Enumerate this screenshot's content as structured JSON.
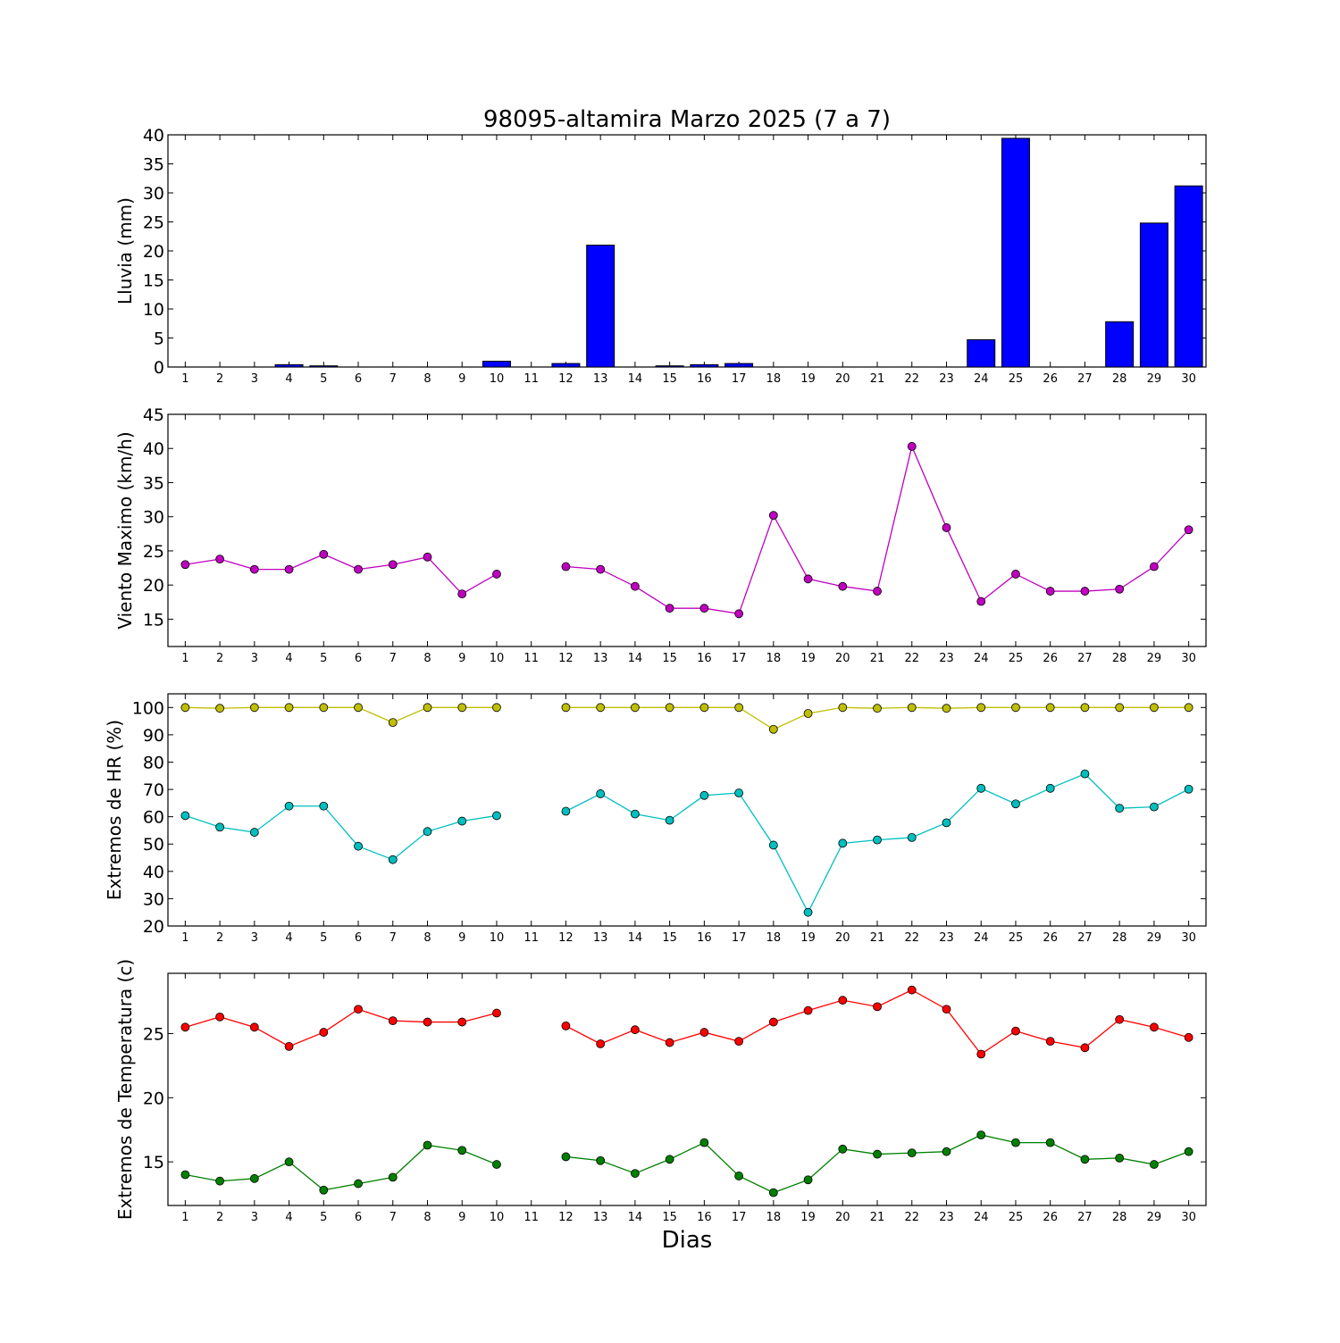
{
  "title": "98095-altamira Marzo 2025  (7 a 7)",
  "xlabel": "Dias",
  "colors": {
    "rain_bar": "#0000ff",
    "wind": "#bf00bf",
    "hr_max": "#bfbf00",
    "hr_min": "#00bfbf",
    "temp_max": "#ff0000",
    "temp_min": "#008000"
  },
  "chart_data": [
    {
      "type": "bar",
      "ylabel": "Lluvia (mm)",
      "ylim": [
        0,
        40
      ],
      "yticks": [
        0,
        5,
        10,
        15,
        20,
        25,
        30,
        35,
        40
      ],
      "categories": [
        1,
        2,
        3,
        4,
        5,
        6,
        7,
        8,
        9,
        10,
        11,
        12,
        13,
        14,
        15,
        16,
        17,
        18,
        19,
        20,
        21,
        22,
        23,
        24,
        25,
        26,
        27,
        28,
        29,
        30
      ],
      "series": [
        {
          "values": [
            0,
            0,
            0,
            0.4,
            0.2,
            0,
            0,
            0,
            0,
            1.0,
            null,
            0.6,
            21.0,
            0,
            0.2,
            0.4,
            0.6,
            0,
            0,
            0,
            0,
            0,
            0,
            4.7,
            39.4,
            0,
            0,
            7.8,
            24.8,
            31.2
          ]
        }
      ]
    },
    {
      "type": "line",
      "ylabel": "Viento Maximo (km/h)",
      "ylim": [
        11,
        45
      ],
      "yticks": [
        15,
        20,
        25,
        30,
        35,
        40,
        45
      ],
      "categories": [
        1,
        2,
        3,
        4,
        5,
        6,
        7,
        8,
        9,
        10,
        11,
        12,
        13,
        14,
        15,
        16,
        17,
        18,
        19,
        20,
        21,
        22,
        23,
        24,
        25,
        26,
        27,
        28,
        29,
        30
      ],
      "series": [
        {
          "values": [
            23.0,
            23.8,
            22.3,
            22.3,
            24.5,
            22.3,
            23.0,
            24.1,
            18.7,
            21.6,
            null,
            22.7,
            22.3,
            19.8,
            16.6,
            16.6,
            15.8,
            30.2,
            20.9,
            19.8,
            19.1,
            40.3,
            28.4,
            17.6,
            21.6,
            19.1,
            19.1,
            19.4,
            22.7,
            28.1
          ]
        }
      ]
    },
    {
      "type": "line",
      "ylabel": "Extremos de HR (%)",
      "ylim": [
        20,
        105
      ],
      "yticks": [
        20,
        30,
        40,
        50,
        60,
        70,
        80,
        90,
        100
      ],
      "categories": [
        1,
        2,
        3,
        4,
        5,
        6,
        7,
        8,
        9,
        10,
        11,
        12,
        13,
        14,
        15,
        16,
        17,
        18,
        19,
        20,
        21,
        22,
        23,
        24,
        25,
        26,
        27,
        28,
        29,
        30
      ],
      "series": [
        {
          "values": [
            100,
            99.7,
            100,
            100,
            100,
            100,
            94.5,
            100,
            100,
            100,
            null,
            100,
            100,
            100,
            100,
            100,
            100,
            92,
            97.8,
            100,
            99.7,
            100,
            99.7,
            100,
            100,
            100,
            100,
            100,
            100,
            100
          ]
        },
        {
          "values": [
            60.4,
            56.2,
            54.3,
            63.9,
            63.9,
            49.2,
            44.3,
            54.6,
            58.4,
            60.4,
            null,
            62,
            68.4,
            61,
            58.7,
            67.8,
            68.7,
            49.6,
            25,
            50.3,
            51.5,
            52.4,
            57.8,
            70.4,
            64.7,
            70.4,
            75.7,
            63.1,
            63.6,
            70.1
          ]
        }
      ]
    },
    {
      "type": "line",
      "ylabel": "Extremos de Temperatura (c)",
      "ylim": [
        11.6,
        29.7
      ],
      "yticks": [
        15,
        20,
        25
      ],
      "categories": [
        1,
        2,
        3,
        4,
        5,
        6,
        7,
        8,
        9,
        10,
        11,
        12,
        13,
        14,
        15,
        16,
        17,
        18,
        19,
        20,
        21,
        22,
        23,
        24,
        25,
        26,
        27,
        28,
        29,
        30
      ],
      "series": [
        {
          "values": [
            25.5,
            26.3,
            25.5,
            24.0,
            25.1,
            26.9,
            26.0,
            25.9,
            25.9,
            26.6,
            null,
            25.6,
            24.2,
            25.3,
            24.3,
            25.1,
            24.4,
            25.9,
            26.8,
            27.6,
            27.1,
            28.4,
            26.9,
            23.4,
            25.2,
            24.4,
            23.9,
            26.1,
            25.5,
            24.7
          ]
        },
        {
          "values": [
            14.0,
            13.5,
            13.7,
            15.0,
            12.8,
            13.3,
            13.8,
            16.3,
            15.9,
            14.8,
            null,
            15.4,
            15.1,
            14.1,
            15.2,
            16.5,
            13.9,
            12.6,
            13.6,
            16.0,
            15.6,
            15.7,
            15.8,
            17.1,
            16.5,
            16.5,
            15.2,
            15.3,
            14.8,
            15.8
          ]
        }
      ]
    }
  ]
}
